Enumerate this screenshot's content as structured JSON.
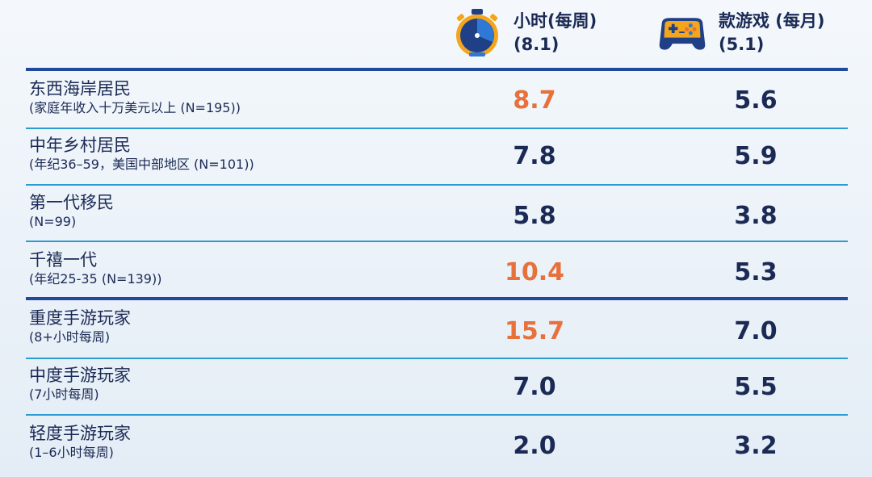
{
  "colors": {
    "highlight": "#e8703a",
    "normal": "#1b2a55",
    "rule_thick": "#1f4a9c",
    "rule_thin": "#2b9bd0"
  },
  "header": {
    "hours": {
      "icon": "stopwatch-icon",
      "label": "小时(每周)",
      "avg": "(8.1)"
    },
    "games": {
      "icon": "gamepad-icon",
      "label": "款游戏 (每月)",
      "avg": "(5.1)"
    }
  },
  "chart_data": {
    "type": "table",
    "columns": [
      "小时(每周) (8.1)",
      "款游戏 (每月) (5.1)"
    ],
    "rows": [
      {
        "name": "东西海岸居民",
        "sub": "(家庭年收入十万美元以上 (N=195))",
        "hours": "8.7",
        "games": "5.6",
        "hours_highlight": true
      },
      {
        "name": "中年乡村居民",
        "sub": "(年纪36–59，美国中部地区 (N=101))",
        "hours": "7.8",
        "games": "5.9",
        "hours_highlight": false
      },
      {
        "name": "第一代移民",
        "sub": "(N=99)",
        "hours": "5.8",
        "games": "3.8",
        "hours_highlight": false
      },
      {
        "name": "千禧一代",
        "sub": "(年纪25-35 (N=139))",
        "hours": "10.4",
        "games": "5.3",
        "hours_highlight": true
      },
      {
        "name": "重度手游玩家",
        "sub": "(8+小时每周)",
        "hours": "15.7",
        "games": "7.0",
        "hours_highlight": true
      },
      {
        "name": "中度手游玩家",
        "sub": "(7小时每周)",
        "hours": "7.0",
        "games": "5.5",
        "hours_highlight": false
      },
      {
        "name": "轻度手游玩家",
        "sub": "(1–6小时每周)",
        "hours": "2.0",
        "games": "3.2",
        "hours_highlight": false
      }
    ]
  }
}
